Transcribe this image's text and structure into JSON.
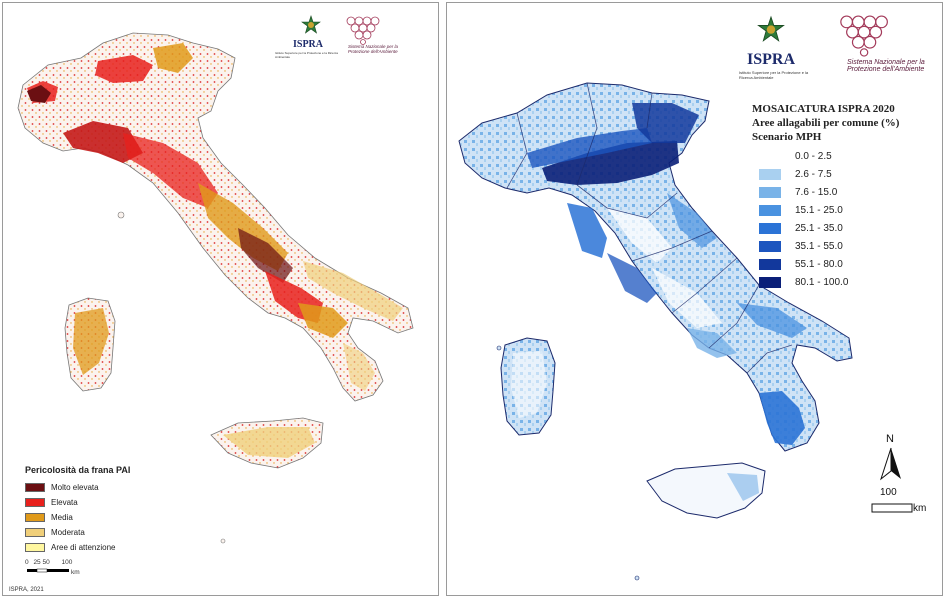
{
  "left_panel": {
    "logo": {
      "org": "ISPRA",
      "emblem": "italian-republic-emblem-icon",
      "subtitle": "Istituto Superiore per la Protezione e la Ricerca Ambientale"
    },
    "snpa": {
      "text": "Sistema Nazionale per la Protezione dell'Ambiente",
      "icon": "hexagon-network-icon"
    },
    "legend": {
      "title": "Pericolosità da frana PAI",
      "items": [
        {
          "label": "Molto elevata",
          "color": "#6b0f12"
        },
        {
          "label": "Elevata",
          "color": "#e8201c"
        },
        {
          "label": "Media",
          "color": "#e09a1a"
        },
        {
          "label": "Moderata",
          "color": "#f0cf7a"
        },
        {
          "label": "Aree di attenzione",
          "color": "#fff7a0"
        }
      ]
    },
    "scale_bar": {
      "ticks": [
        "0",
        "25",
        "50",
        "100"
      ],
      "unit": "km"
    },
    "credit": "ISPRA, 2021"
  },
  "right_panel": {
    "logo": {
      "org": "ISPRA",
      "emblem": "italian-republic-emblem-icon",
      "subtitle": "Istituto Superiore per la Protezione e la Ricerca Ambientale"
    },
    "snpa": {
      "text": "Sistema Nazionale per la Protezione dell'Ambiente",
      "icon": "hexagon-network-icon"
    },
    "legend": {
      "title1": "MOSAICATURA ISPRA 2020",
      "title2": "Aree allagabili per comune (%)",
      "title3": "Scenario MPH",
      "items": [
        {
          "label": "0.0 - 2.5",
          "color": "#ffffff"
        },
        {
          "label": "2.6 - 7.5",
          "color": "#a9d0f0"
        },
        {
          "label": "7.6 - 15.0",
          "color": "#79b3e8"
        },
        {
          "label": "15.1 - 25.0",
          "color": "#4a92e0"
        },
        {
          "label": "25.1 - 35.0",
          "color": "#2b73d6"
        },
        {
          "label": "35.1 - 55.0",
          "color": "#1c55bf"
        },
        {
          "label": "55.1 - 80.0",
          "color": "#12389c"
        },
        {
          "label": "80.1 - 100.0",
          "color": "#0a1f78"
        }
      ]
    },
    "north": {
      "label": "N",
      "icon": "north-arrow-icon"
    },
    "scale_bar": {
      "value": "100",
      "unit": "km"
    }
  }
}
